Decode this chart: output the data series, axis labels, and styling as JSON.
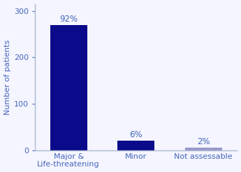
{
  "categories": [
    "Major &\nLife-threatening",
    "Minor",
    "Not assessable"
  ],
  "values": [
    270,
    20,
    5
  ],
  "labels": [
    "92%",
    "6%",
    "2%"
  ],
  "bar_colors": [
    "#0A0A8B",
    "#0A0A8B",
    "#9999CC"
  ],
  "ylabel": "Number of patients",
  "ylim": [
    0,
    315
  ],
  "yticks": [
    0,
    100,
    200,
    300
  ],
  "label_color": "#4466BB",
  "axis_color": "#4466BB",
  "ylabel_color": "#4466BB",
  "tick_color": "#4466BB",
  "background_color": "#F5F5FF",
  "bar_width": 0.55,
  "label_fontsize": 8.5,
  "ylabel_fontsize": 8,
  "tick_fontsize": 8,
  "xtick_fontsize": 8,
  "spine_color": "#AABBD0",
  "x_positions": [
    0,
    1,
    2
  ]
}
